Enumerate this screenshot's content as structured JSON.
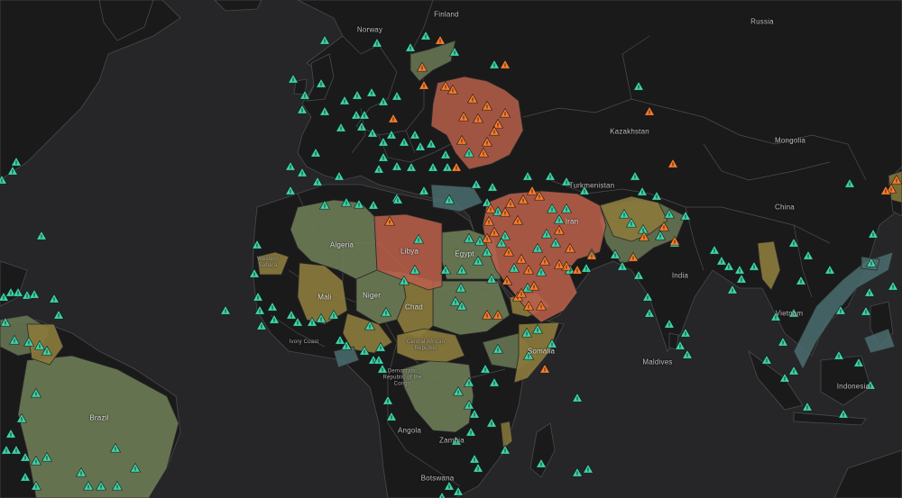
{
  "map": {
    "labels": [
      {
        "key": "finland",
        "text": "Finland"
      },
      {
        "key": "russia",
        "text": "Russia"
      },
      {
        "key": "norway",
        "text": "Norway"
      },
      {
        "key": "kazakhstan",
        "text": "Kazakhstan"
      },
      {
        "key": "mongolia",
        "text": "Mongolia"
      },
      {
        "key": "turkmenistan",
        "text": "Turkmenistan"
      },
      {
        "key": "china",
        "text": "China"
      },
      {
        "key": "iran",
        "text": "Iran"
      },
      {
        "key": "algeria",
        "text": "Algeria"
      },
      {
        "key": "libya",
        "text": "Libya"
      },
      {
        "key": "egypt",
        "text": "Egypt"
      },
      {
        "key": "western_sahara",
        "text": "Western Sahara"
      },
      {
        "key": "mali",
        "text": "Mali"
      },
      {
        "key": "niger",
        "text": "Niger"
      },
      {
        "key": "chad",
        "text": "Chad"
      },
      {
        "key": "ivory_coast",
        "text": "Ivory Coast"
      },
      {
        "key": "central_african_republic",
        "text": "Central African Republic"
      },
      {
        "key": "somalia",
        "text": "Somalia"
      },
      {
        "key": "democratic_republic_of_the_congo",
        "text": "Democratic Republic of the Congo"
      },
      {
        "key": "india",
        "text": "India"
      },
      {
        "key": "vietnam",
        "text": "Vietnam"
      },
      {
        "key": "maldives",
        "text": "Maldives"
      },
      {
        "key": "indonesia",
        "text": "Indonesia"
      },
      {
        "key": "brazil",
        "text": "Brazil"
      },
      {
        "key": "angola",
        "text": "Angola"
      },
      {
        "key": "zambia",
        "text": "Zambia"
      },
      {
        "key": "botswana",
        "text": "Botswana"
      }
    ],
    "colors": {
      "ocean": "#262628",
      "land": "#1a1a1b",
      "green_region": "#6b7a55",
      "olive_region": "#8a7a3c",
      "red_region": "#b8604a",
      "teal_region": "#4b6e6e",
      "marker_teal": "#3fd3a8",
      "marker_orange": "#ff7a2a"
    },
    "marker_types": [
      {
        "name": "teal-triangle-marker",
        "color": "#3fd3a8"
      },
      {
        "name": "orange-triangle-marker",
        "color": "#ff7a2a"
      }
    ]
  }
}
